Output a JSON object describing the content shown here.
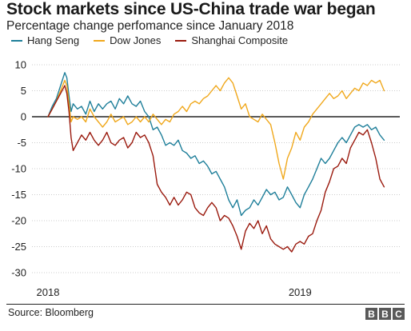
{
  "chart_data": {
    "type": "line",
    "title": "Stock markets since US-China trade war began",
    "subtitle": "Percentage change perfomance since January 2018",
    "xlabel": "",
    "ylabel": "",
    "ylim": [
      -30,
      10
    ],
    "yticks": [
      10,
      5,
      0,
      -5,
      -10,
      -15,
      -20,
      -25,
      -30
    ],
    "xticks": [
      {
        "label": "2018",
        "x": 0
      },
      {
        "label": "2019",
        "x": 12
      }
    ],
    "xlim": [
      0,
      16.1
    ],
    "x_unit": "months since January 2018",
    "grid": "horizontal",
    "legend_position": "top",
    "series": [
      {
        "name": "Hang Seng",
        "color": "#1f7f9a",
        "points": [
          [
            0,
            0
          ],
          [
            0.2,
            2
          ],
          [
            0.4,
            3.5
          ],
          [
            0.6,
            6
          ],
          [
            0.8,
            8.5
          ],
          [
            0.9,
            7.5
          ],
          [
            1.0,
            4
          ],
          [
            1.1,
            1
          ],
          [
            1.2,
            2.5
          ],
          [
            1.4,
            1.5
          ],
          [
            1.6,
            2
          ],
          [
            1.8,
            0.5
          ],
          [
            2.0,
            3
          ],
          [
            2.2,
            1
          ],
          [
            2.4,
            2.5
          ],
          [
            2.6,
            1.5
          ],
          [
            2.8,
            2.5
          ],
          [
            3.0,
            3
          ],
          [
            3.2,
            1.5
          ],
          [
            3.4,
            3.5
          ],
          [
            3.6,
            2.5
          ],
          [
            3.8,
            4
          ],
          [
            4.0,
            2.5
          ],
          [
            4.2,
            2
          ],
          [
            4.4,
            3
          ],
          [
            4.6,
            1
          ],
          [
            4.8,
            0
          ],
          [
            5.0,
            -2.5
          ],
          [
            5.2,
            -2
          ],
          [
            5.4,
            -3.5
          ],
          [
            5.6,
            -5.5
          ],
          [
            5.8,
            -5
          ],
          [
            6.0,
            -5.5
          ],
          [
            6.2,
            -4.5
          ],
          [
            6.4,
            -6.5
          ],
          [
            6.6,
            -7
          ],
          [
            6.8,
            -8
          ],
          [
            7.0,
            -7.5
          ],
          [
            7.2,
            -9
          ],
          [
            7.4,
            -8.5
          ],
          [
            7.6,
            -9.5
          ],
          [
            7.8,
            -11
          ],
          [
            8.0,
            -10.5
          ],
          [
            8.2,
            -12
          ],
          [
            8.4,
            -13.5
          ],
          [
            8.6,
            -16
          ],
          [
            8.8,
            -17.5
          ],
          [
            9.0,
            -16
          ],
          [
            9.2,
            -19
          ],
          [
            9.4,
            -18
          ],
          [
            9.6,
            -17.5
          ],
          [
            9.8,
            -16
          ],
          [
            10.0,
            -17
          ],
          [
            10.2,
            -15.5
          ],
          [
            10.4,
            -14
          ],
          [
            10.6,
            -15
          ],
          [
            10.8,
            -14.5
          ],
          [
            11.0,
            -16
          ],
          [
            11.2,
            -15.5
          ],
          [
            11.4,
            -13.5
          ],
          [
            11.6,
            -15
          ],
          [
            11.8,
            -16.5
          ],
          [
            12.0,
            -17.5
          ],
          [
            12.2,
            -15
          ],
          [
            12.4,
            -13.5
          ],
          [
            12.6,
            -12
          ],
          [
            12.8,
            -10
          ],
          [
            13.0,
            -8
          ],
          [
            13.2,
            -9
          ],
          [
            13.4,
            -8
          ],
          [
            13.6,
            -6.5
          ],
          [
            13.8,
            -5
          ],
          [
            14.0,
            -4
          ],
          [
            14.2,
            -5
          ],
          [
            14.4,
            -3.5
          ],
          [
            14.6,
            -2
          ],
          [
            14.8,
            -1.5
          ],
          [
            15.0,
            -2
          ],
          [
            15.2,
            -1.5
          ],
          [
            15.4,
            -2.5
          ],
          [
            15.6,
            -2
          ],
          [
            15.8,
            -3.5
          ],
          [
            16.0,
            -4.5
          ]
        ]
      },
      {
        "name": "Dow Jones",
        "color": "#f0a81c",
        "points": [
          [
            0,
            0
          ],
          [
            0.2,
            1.5
          ],
          [
            0.4,
            3
          ],
          [
            0.6,
            5
          ],
          [
            0.8,
            7
          ],
          [
            0.9,
            6
          ],
          [
            1.0,
            2.5
          ],
          [
            1.1,
            -1
          ],
          [
            1.2,
            0
          ],
          [
            1.4,
            -0.5
          ],
          [
            1.6,
            0
          ],
          [
            1.8,
            -1
          ],
          [
            2.0,
            1.5
          ],
          [
            2.2,
            0
          ],
          [
            2.4,
            -1
          ],
          [
            2.6,
            -2
          ],
          [
            2.8,
            -1
          ],
          [
            3.0,
            0.5
          ],
          [
            3.2,
            -1
          ],
          [
            3.4,
            -0.5
          ],
          [
            3.6,
            0
          ],
          [
            3.8,
            -1.5
          ],
          [
            4.0,
            -1
          ],
          [
            4.2,
            0
          ],
          [
            4.4,
            -1
          ],
          [
            4.6,
            0
          ],
          [
            4.8,
            -1
          ],
          [
            5.0,
            0.5
          ],
          [
            5.2,
            -0.5
          ],
          [
            5.4,
            -1.5
          ],
          [
            5.6,
            -0.5
          ],
          [
            5.8,
            -1
          ],
          [
            6.0,
            0.5
          ],
          [
            6.2,
            1
          ],
          [
            6.4,
            2
          ],
          [
            6.6,
            1
          ],
          [
            6.8,
            2.5
          ],
          [
            7.0,
            3
          ],
          [
            7.2,
            2.5
          ],
          [
            7.4,
            3.5
          ],
          [
            7.6,
            4
          ],
          [
            7.8,
            5
          ],
          [
            8.0,
            6
          ],
          [
            8.2,
            5
          ],
          [
            8.4,
            6.5
          ],
          [
            8.6,
            7.5
          ],
          [
            8.8,
            6.5
          ],
          [
            9.0,
            4
          ],
          [
            9.2,
            1.5
          ],
          [
            9.4,
            2.5
          ],
          [
            9.6,
            0
          ],
          [
            9.8,
            -0.5
          ],
          [
            10.0,
            -1
          ],
          [
            10.2,
            0.5
          ],
          [
            10.4,
            -0.5
          ],
          [
            10.6,
            -1.5
          ],
          [
            10.8,
            -5
          ],
          [
            11.0,
            -9
          ],
          [
            11.2,
            -12
          ],
          [
            11.4,
            -8
          ],
          [
            11.6,
            -6
          ],
          [
            11.8,
            -3
          ],
          [
            12.0,
            -4.5
          ],
          [
            12.2,
            -2
          ],
          [
            12.4,
            -1
          ],
          [
            12.6,
            0.5
          ],
          [
            12.8,
            1.5
          ],
          [
            13.0,
            2.5
          ],
          [
            13.2,
            3.5
          ],
          [
            13.4,
            4.5
          ],
          [
            13.6,
            3.5
          ],
          [
            13.8,
            4
          ],
          [
            14.0,
            5
          ],
          [
            14.2,
            3.5
          ],
          [
            14.4,
            4.5
          ],
          [
            14.6,
            5.5
          ],
          [
            14.8,
            5
          ],
          [
            15.0,
            6.5
          ],
          [
            15.2,
            6
          ],
          [
            15.4,
            7
          ],
          [
            15.6,
            6.5
          ],
          [
            15.8,
            7
          ],
          [
            16.0,
            5
          ]
        ]
      },
      {
        "name": "Shanghai Composite",
        "color": "#9a1a0e",
        "points": [
          [
            0,
            0
          ],
          [
            0.2,
            1.5
          ],
          [
            0.4,
            3
          ],
          [
            0.6,
            4.5
          ],
          [
            0.8,
            6
          ],
          [
            0.9,
            4.5
          ],
          [
            1.0,
            1
          ],
          [
            1.1,
            -4
          ],
          [
            1.2,
            -6.5
          ],
          [
            1.4,
            -5
          ],
          [
            1.6,
            -3.5
          ],
          [
            1.8,
            -4.5
          ],
          [
            2.0,
            -3
          ],
          [
            2.2,
            -4.5
          ],
          [
            2.4,
            -5.5
          ],
          [
            2.6,
            -4.5
          ],
          [
            2.8,
            -3
          ],
          [
            3.0,
            -5
          ],
          [
            3.2,
            -5.5
          ],
          [
            3.4,
            -4.5
          ],
          [
            3.6,
            -4
          ],
          [
            3.8,
            -6
          ],
          [
            4.0,
            -5
          ],
          [
            4.2,
            -3
          ],
          [
            4.4,
            -4
          ],
          [
            4.6,
            -3.5
          ],
          [
            4.8,
            -5
          ],
          [
            5.0,
            -7.5
          ],
          [
            5.2,
            -13
          ],
          [
            5.4,
            -14.5
          ],
          [
            5.6,
            -15.5
          ],
          [
            5.8,
            -17
          ],
          [
            6.0,
            -15.5
          ],
          [
            6.2,
            -17
          ],
          [
            6.4,
            -16
          ],
          [
            6.6,
            -14.5
          ],
          [
            6.8,
            -15
          ],
          [
            7.0,
            -17.5
          ],
          [
            7.2,
            -18.5
          ],
          [
            7.4,
            -19
          ],
          [
            7.6,
            -17.5
          ],
          [
            7.8,
            -16.5
          ],
          [
            8.0,
            -17.5
          ],
          [
            8.2,
            -20
          ],
          [
            8.4,
            -19
          ],
          [
            8.6,
            -19.5
          ],
          [
            8.8,
            -21
          ],
          [
            9.0,
            -23
          ],
          [
            9.2,
            -25.5
          ],
          [
            9.4,
            -22
          ],
          [
            9.6,
            -20.5
          ],
          [
            9.8,
            -21.5
          ],
          [
            10.0,
            -20
          ],
          [
            10.2,
            -22.5
          ],
          [
            10.4,
            -21
          ],
          [
            10.6,
            -23.5
          ],
          [
            10.8,
            -24.5
          ],
          [
            11.0,
            -25
          ],
          [
            11.2,
            -25.5
          ],
          [
            11.4,
            -25
          ],
          [
            11.6,
            -26
          ],
          [
            11.8,
            -24.5
          ],
          [
            12.0,
            -24
          ],
          [
            12.2,
            -24.5
          ],
          [
            12.4,
            -23
          ],
          [
            12.6,
            -22.5
          ],
          [
            12.8,
            -20
          ],
          [
            13.0,
            -18
          ],
          [
            13.2,
            -14.5
          ],
          [
            13.4,
            -12.5
          ],
          [
            13.6,
            -10
          ],
          [
            13.8,
            -9.5
          ],
          [
            14.0,
            -8
          ],
          [
            14.2,
            -9
          ],
          [
            14.4,
            -6
          ],
          [
            14.6,
            -4.5
          ],
          [
            14.8,
            -3
          ],
          [
            15.0,
            -3.5
          ],
          [
            15.2,
            -2.5
          ],
          [
            15.4,
            -5
          ],
          [
            15.6,
            -8
          ],
          [
            15.8,
            -12
          ],
          [
            16.0,
            -13.5
          ]
        ]
      }
    ]
  },
  "footer": {
    "source": "Source: Bloomberg",
    "logo_letters": [
      "B",
      "B",
      "C"
    ]
  }
}
